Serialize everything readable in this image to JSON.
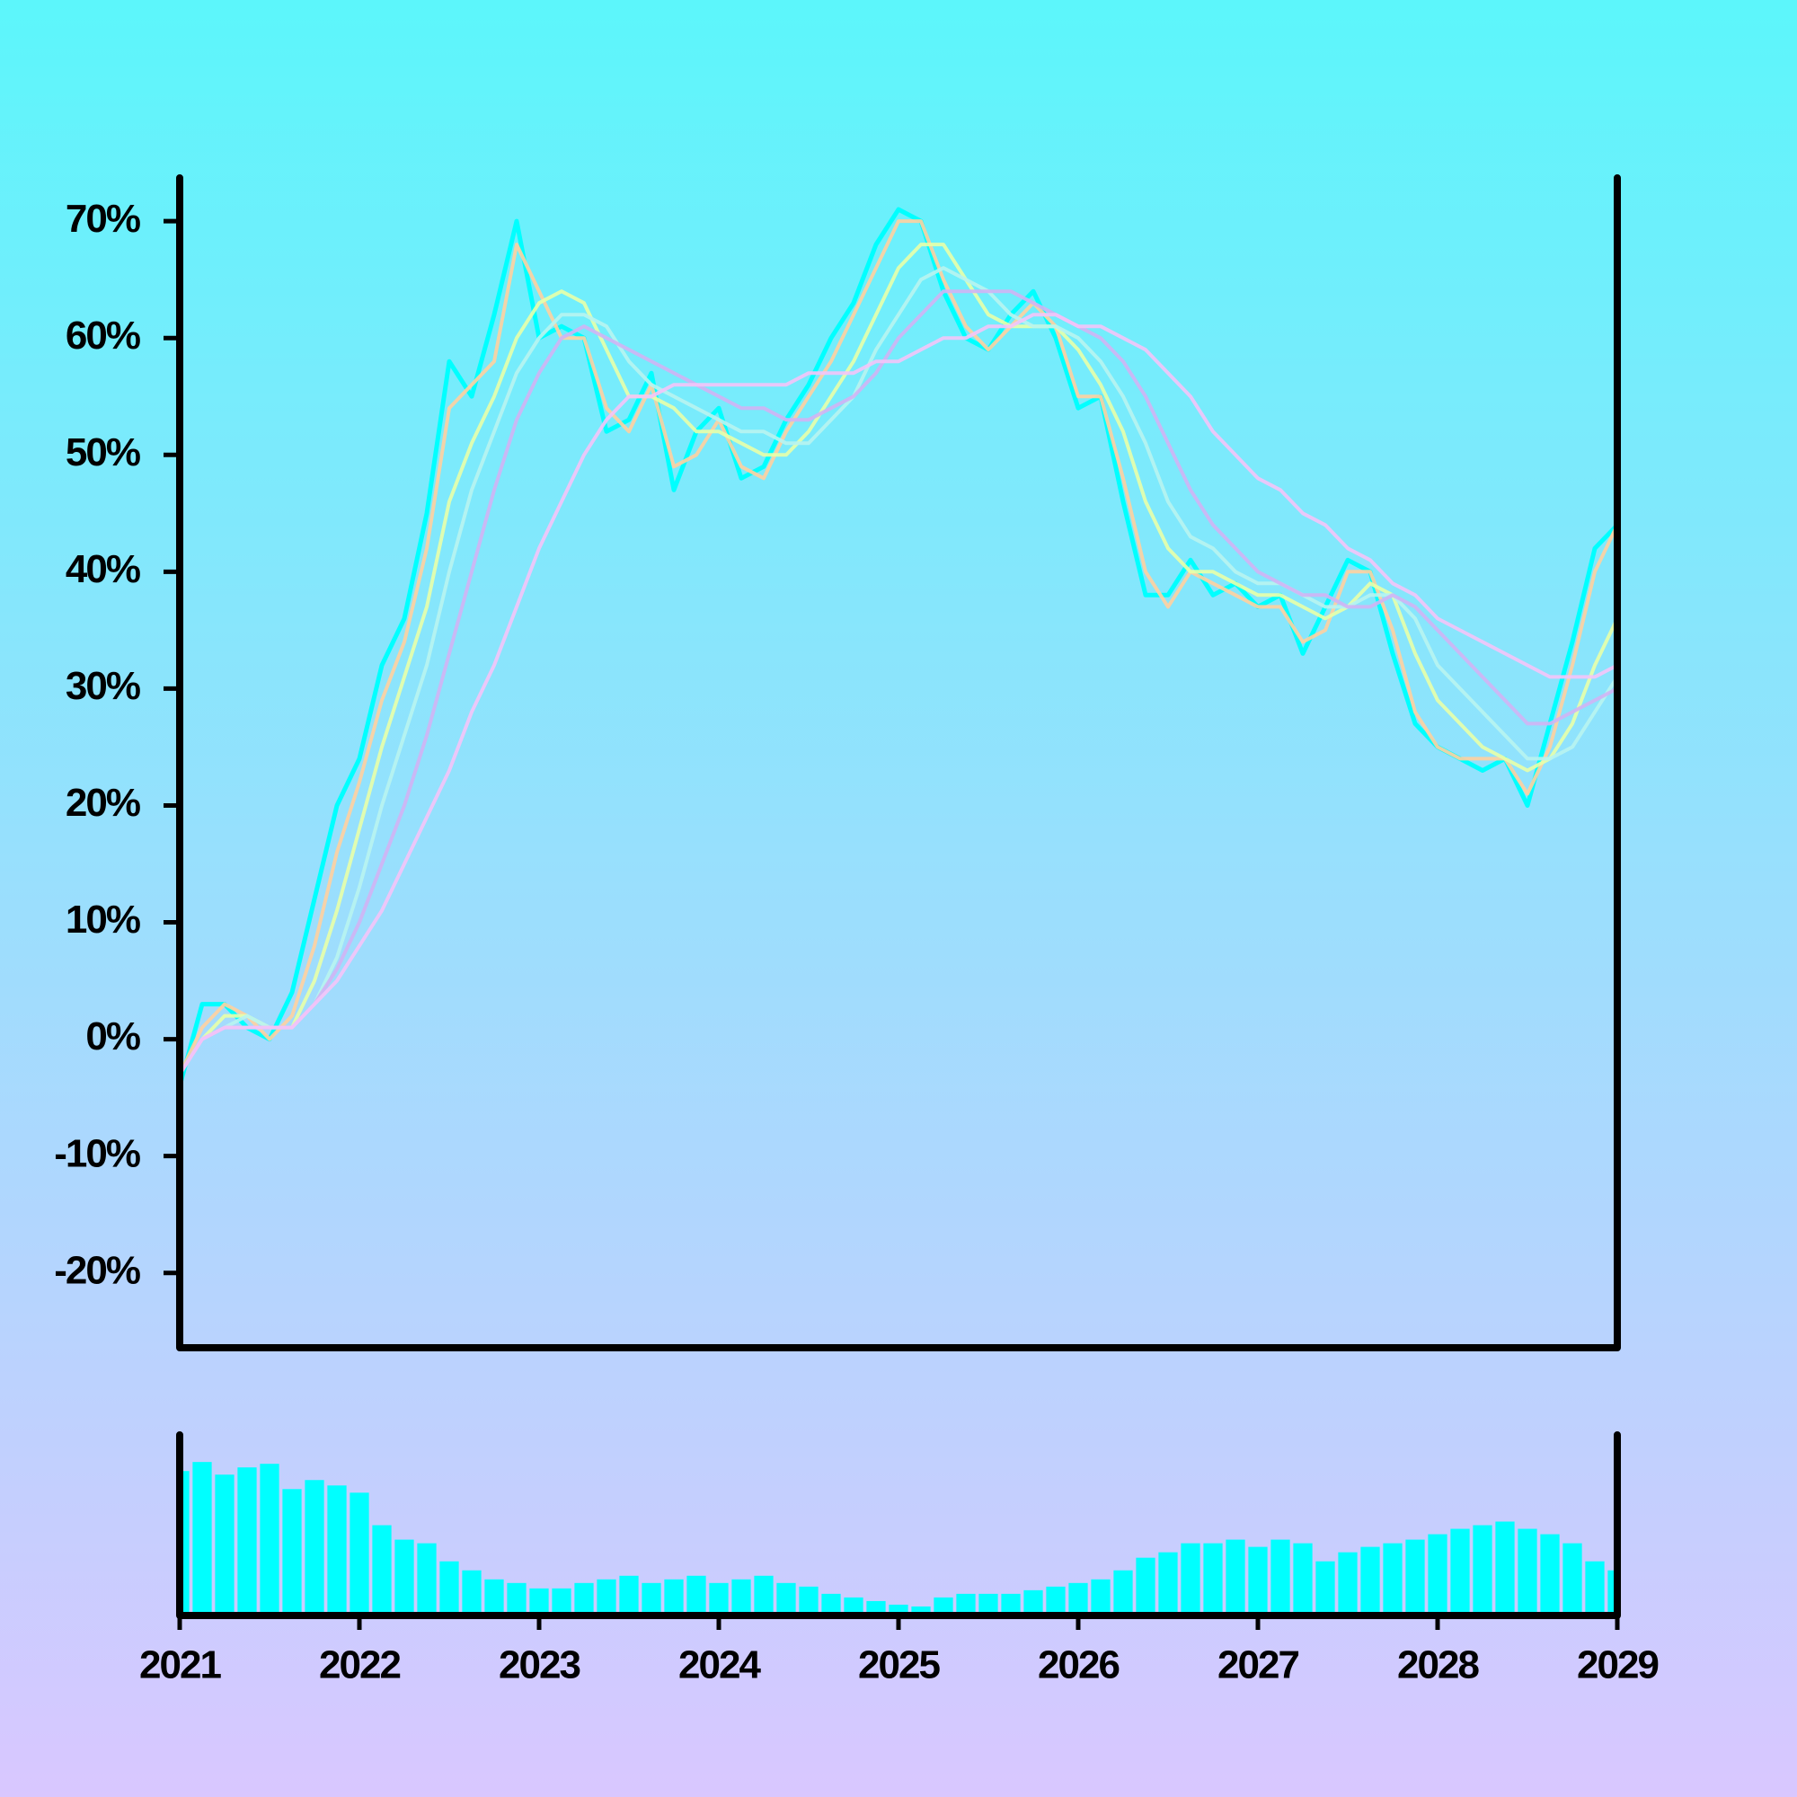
{
  "chart_data": [
    {
      "type": "line",
      "x": [
        2021,
        2021.125,
        2021.25,
        2021.375,
        2021.5,
        2021.625,
        2021.75,
        2021.875,
        2022,
        2022.125,
        2022.25,
        2022.375,
        2022.5,
        2022.625,
        2022.75,
        2022.875,
        2023,
        2023.125,
        2023.25,
        2023.375,
        2023.5,
        2023.625,
        2023.75,
        2023.875,
        2024,
        2024.125,
        2024.25,
        2024.375,
        2024.5,
        2024.625,
        2024.75,
        2024.875,
        2025,
        2025.125,
        2025.25,
        2025.375,
        2025.5,
        2025.625,
        2025.75,
        2025.875,
        2026,
        2026.125,
        2026.25,
        2026.375,
        2026.5,
        2026.625,
        2026.75,
        2026.875,
        2027,
        2027.125,
        2027.25,
        2027.375,
        2027.5,
        2027.625,
        2027.75,
        2027.875,
        2028,
        2028.125,
        2028.25,
        2028.375,
        2028.5,
        2028.625,
        2028.75,
        2028.875,
        2029
      ],
      "xlim": [
        2021,
        2029
      ],
      "ylim": [
        -26.4,
        73.7
      ],
      "yticks": [
        {
          "value": -20,
          "label": "-20%"
        },
        {
          "value": -10,
          "label": "-10%"
        },
        {
          "value": 0,
          "label": "0%"
        },
        {
          "value": 10,
          "label": "10%"
        },
        {
          "value": 20,
          "label": "20%"
        },
        {
          "value": 30,
          "label": "30%"
        },
        {
          "value": 40,
          "label": "40%"
        },
        {
          "value": 50,
          "label": "50%"
        },
        {
          "value": 60,
          "label": "60%"
        },
        {
          "value": 70,
          "label": "70%"
        }
      ],
      "series": [
        {
          "color": "#00ffff",
          "values": [
            -4,
            3,
            3,
            1,
            0,
            4,
            12,
            20,
            24,
            32,
            36,
            45,
            58,
            55,
            62,
            70,
            60,
            61,
            60,
            52,
            53,
            57,
            47,
            52,
            54,
            48,
            49,
            53,
            56,
            60,
            63,
            68,
            71,
            70,
            64,
            60,
            59,
            62,
            64,
            60,
            54,
            55,
            46,
            38,
            38,
            41,
            38,
            39,
            37,
            38,
            33,
            37,
            41,
            40,
            33,
            27,
            25,
            24,
            23,
            24,
            20,
            27,
            34,
            42,
            44
          ]
        },
        {
          "color": "#ffd0a0",
          "values": [
            -3,
            1,
            3,
            2,
            0,
            2,
            8,
            16,
            22,
            29,
            34,
            42,
            54,
            56,
            58,
            68,
            64,
            60,
            60,
            54,
            52,
            56,
            49,
            50,
            53,
            49,
            48,
            52,
            55,
            58,
            62,
            66,
            70,
            70,
            65,
            61,
            59,
            61,
            63,
            61,
            55,
            55,
            48,
            40,
            37,
            40,
            39,
            38,
            37,
            37,
            34,
            35,
            40,
            40,
            35,
            28,
            25,
            24,
            24,
            24,
            21,
            25,
            32,
            40,
            44
          ]
        },
        {
          "color": "#e8ffa8",
          "values": [
            -3,
            0,
            2,
            2,
            1,
            1,
            5,
            11,
            18,
            25,
            31,
            37,
            46,
            51,
            55,
            60,
            63,
            64,
            63,
            59,
            55,
            55,
            54,
            52,
            52,
            51,
            50,
            50,
            52,
            55,
            58,
            62,
            66,
            68,
            68,
            65,
            62,
            61,
            61,
            61,
            59,
            56,
            52,
            46,
            42,
            40,
            40,
            39,
            38,
            38,
            37,
            36,
            37,
            39,
            38,
            33,
            29,
            27,
            25,
            24,
            23,
            24,
            27,
            32,
            36
          ]
        },
        {
          "color": "#b8f4f0",
          "values": [
            -3,
            0,
            1,
            2,
            1,
            1,
            3,
            7,
            13,
            20,
            26,
            32,
            40,
            47,
            52,
            57,
            60,
            62,
            62,
            61,
            58,
            56,
            55,
            54,
            53,
            52,
            52,
            51,
            51,
            53,
            55,
            59,
            62,
            65,
            66,
            65,
            64,
            62,
            61,
            61,
            60,
            58,
            55,
            51,
            46,
            43,
            42,
            40,
            39,
            39,
            38,
            37,
            37,
            38,
            38,
            36,
            32,
            30,
            28,
            26,
            24,
            24,
            25,
            28,
            31
          ]
        },
        {
          "color": "#d0b4f4",
          "values": [
            -3,
            0,
            1,
            1,
            1,
            1,
            3,
            6,
            10,
            15,
            20,
            26,
            33,
            40,
            47,
            53,
            57,
            60,
            61,
            60,
            59,
            58,
            57,
            56,
            55,
            54,
            54,
            53,
            53,
            54,
            55,
            57,
            60,
            62,
            64,
            64,
            64,
            64,
            63,
            62,
            61,
            60,
            58,
            55,
            51,
            47,
            44,
            42,
            40,
            39,
            38,
            38,
            37,
            37,
            38,
            37,
            35,
            33,
            31,
            29,
            27,
            27,
            28,
            29,
            30
          ]
        },
        {
          "color": "#f4c4f8",
          "values": [
            -3,
            0,
            1,
            1,
            1,
            1,
            3,
            5,
            8,
            11,
            15,
            19,
            23,
            28,
            32,
            37,
            42,
            46,
            50,
            53,
            55,
            55,
            56,
            56,
            56,
            56,
            56,
            56,
            57,
            57,
            57,
            58,
            58,
            59,
            60,
            60,
            61,
            61,
            62,
            62,
            61,
            61,
            60,
            59,
            57,
            55,
            52,
            50,
            48,
            47,
            45,
            44,
            42,
            41,
            39,
            38,
            36,
            35,
            34,
            33,
            32,
            31,
            31,
            31,
            32
          ]
        }
      ]
    },
    {
      "type": "bar",
      "x": [
        2021,
        2021.125,
        2021.25,
        2021.375,
        2021.5,
        2021.625,
        2021.75,
        2021.875,
        2022,
        2022.125,
        2022.25,
        2022.375,
        2022.5,
        2022.625,
        2022.75,
        2022.875,
        2023,
        2023.125,
        2023.25,
        2023.375,
        2023.5,
        2023.625,
        2023.75,
        2023.875,
        2024,
        2024.125,
        2024.25,
        2024.375,
        2024.5,
        2024.625,
        2024.75,
        2024.875,
        2025,
        2025.125,
        2025.25,
        2025.375,
        2025.5,
        2025.625,
        2025.75,
        2025.875,
        2026,
        2026.125,
        2026.25,
        2026.375,
        2026.5,
        2026.625,
        2026.75,
        2026.875,
        2027,
        2027.125,
        2027.25,
        2027.375,
        2027.5,
        2027.625,
        2027.75,
        2027.875,
        2028,
        2028.125,
        2028.25,
        2028.375,
        2028.5,
        2028.625,
        2028.75,
        2028.875,
        2029
      ],
      "values": [
        80,
        85,
        78,
        82,
        84,
        70,
        75,
        72,
        68,
        50,
        42,
        40,
        30,
        25,
        20,
        18,
        15,
        15,
        18,
        20,
        22,
        18,
        20,
        22,
        18,
        20,
        22,
        18,
        16,
        12,
        10,
        8,
        6,
        5,
        10,
        12,
        12,
        12,
        14,
        16,
        18,
        20,
        25,
        32,
        35,
        40,
        40,
        42,
        38,
        42,
        40,
        30,
        35,
        38,
        40,
        42,
        45,
        48,
        50,
        52,
        48,
        45,
        40,
        30,
        25
      ],
      "color": "#00ffff",
      "xlim": [
        2021,
        2029
      ],
      "xticks": [
        2021,
        2022,
        2023,
        2024,
        2025,
        2026,
        2027,
        2028,
        2029
      ],
      "ylim": [
        0,
        100
      ]
    }
  ]
}
